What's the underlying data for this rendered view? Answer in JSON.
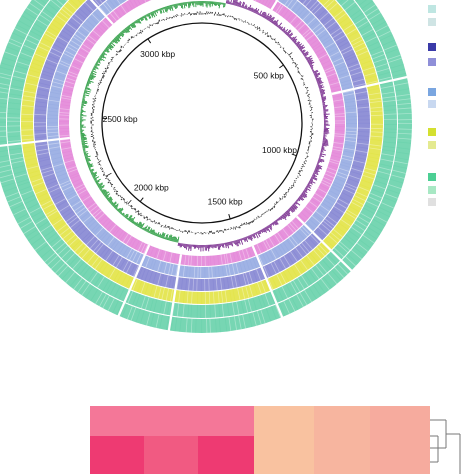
{
  "genome_map": {
    "tick_labels": [
      "500 kbp",
      "1000 kbp",
      "1500 kbp",
      "2000 kbp",
      "2500 kbp",
      "3000 kbp"
    ],
    "ring_colors": {
      "outer_teal": "#5fcfa6",
      "yellow": "#e0e23a",
      "blue_a": "#7e7fd0",
      "blue_b": "#8fa6e0",
      "pink": "#e27fd6",
      "gc_skew_pos": "#7a2f8f",
      "gc_skew_neg": "#2f9e45",
      "gc_content": "#111111",
      "backbone": "#111111"
    },
    "legend_swatches": [
      "#bfe6e2",
      "#cfe4e4",
      "#3a3aa8",
      "#8f8fd8",
      "#7aa6e0",
      "#c8d8f0",
      "#d4e030",
      "#e4ea90",
      "#4ccf94",
      "#a8e8c4",
      "#e0e0e0"
    ]
  },
  "heatmap": {
    "colors": {
      "dark_pink": "#ee3a72",
      "mid_pink": "#f15a82",
      "light_pink": "#f47798",
      "peach": "#f9c2a0",
      "salmon": "#f7b59f",
      "light_salmon": "#f6ab9e"
    }
  }
}
